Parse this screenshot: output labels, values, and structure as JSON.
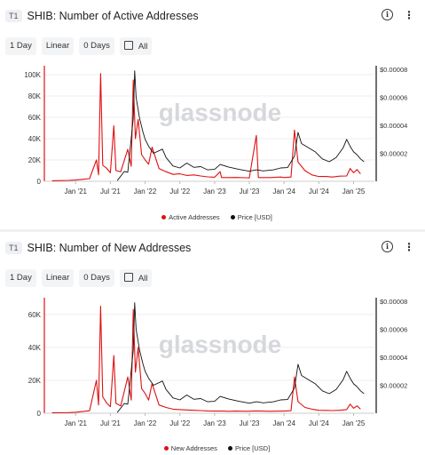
{
  "panels": [
    {
      "badge": "T1",
      "title": "SHIB: Number of Active Addresses",
      "controls": {
        "interval": "1 Day",
        "scale": "Linear",
        "ma": "0 Days",
        "range": "All"
      },
      "watermark": "glassnode",
      "legend": {
        "series1": "Active Addresses",
        "series2": "Price [USD]"
      }
    },
    {
      "badge": "T1",
      "title": "SHIB: Number of New Addresses",
      "controls": {
        "interval": "1 Day",
        "scale": "Linear",
        "ma": "0 Days",
        "range": "All"
      },
      "watermark": "glassnode",
      "legend": {
        "series1": "New Addresses",
        "series2": "Price [USD]"
      }
    }
  ],
  "chart_data": [
    {
      "type": "line",
      "title": "SHIB: Number of Active Addresses",
      "x_ticks": [
        "Jan '21",
        "Jul '21",
        "Jan '22",
        "Jul '22",
        "Jan '23",
        "Jul '23",
        "Jan '24",
        "Jul '24",
        "Jan '25"
      ],
      "y_left_ticks": [
        "0",
        "20K",
        "40K",
        "60K",
        "80K",
        "100K"
      ],
      "y_right_ticks": [
        "$0.00002",
        "$0.00004",
        "$0.00006",
        "$0.00008"
      ],
      "y_left_range": [
        0,
        105000
      ],
      "y_right_range": [
        0,
        8e-05
      ],
      "grid": true,
      "legend_position": "bottom",
      "colors": {
        "series1": "#e01010",
        "series2": "#111111"
      },
      "series": [
        {
          "name": "Active Addresses",
          "axis": "left",
          "points": [
            [
              2020.66,
              500
            ],
            [
              2020.9,
              800
            ],
            [
              2021.0,
              1200
            ],
            [
              2021.1,
              1800
            ],
            [
              2021.2,
              2500
            ],
            [
              2021.3,
              20000
            ],
            [
              2021.33,
              6000
            ],
            [
              2021.36,
              101000
            ],
            [
              2021.39,
              15000
            ],
            [
              2021.45,
              12000
            ],
            [
              2021.5,
              8000
            ],
            [
              2021.55,
              52000
            ],
            [
              2021.58,
              10000
            ],
            [
              2021.65,
              9000
            ],
            [
              2021.75,
              30000
            ],
            [
              2021.8,
              14000
            ],
            [
              2021.83,
              95000
            ],
            [
              2021.86,
              40000
            ],
            [
              2021.9,
              58000
            ],
            [
              2021.95,
              25000
            ],
            [
              2022.0,
              20000
            ],
            [
              2022.05,
              16000
            ],
            [
              2022.1,
              32000
            ],
            [
              2022.2,
              12000
            ],
            [
              2022.3,
              9000
            ],
            [
              2022.4,
              6500
            ],
            [
              2022.5,
              7000
            ],
            [
              2022.6,
              5500
            ],
            [
              2022.7,
              6000
            ],
            [
              2022.8,
              5000
            ],
            [
              2022.9,
              4200
            ],
            [
              2023.0,
              3800
            ],
            [
              2023.08,
              9000
            ],
            [
              2023.1,
              3500
            ],
            [
              2023.2,
              3500
            ],
            [
              2023.3,
              3600
            ],
            [
              2023.45,
              3300
            ],
            [
              2023.5,
              3200
            ],
            [
              2023.6,
              43000
            ],
            [
              2023.63,
              3500
            ],
            [
              2023.8,
              3500
            ],
            [
              2023.95,
              4000
            ],
            [
              2024.0,
              3500
            ],
            [
              2024.1,
              4000
            ],
            [
              2024.15,
              48000
            ],
            [
              2024.2,
              18000
            ],
            [
              2024.3,
              10000
            ],
            [
              2024.4,
              6000
            ],
            [
              2024.5,
              4500
            ],
            [
              2024.6,
              4500
            ],
            [
              2024.7,
              4000
            ],
            [
              2024.8,
              4800
            ],
            [
              2024.9,
              5000
            ],
            [
              2024.95,
              12000
            ],
            [
              2025.0,
              8000
            ],
            [
              2025.05,
              11000
            ],
            [
              2025.1,
              7000
            ]
          ]
        },
        {
          "name": "Price [USD]",
          "axis": "right",
          "points": [
            [
              2021.6,
              5e-07
            ],
            [
              2021.7,
              7e-06
            ],
            [
              2021.75,
              6.5e-06
            ],
            [
              2021.83,
              4.5e-05
            ],
            [
              2021.85,
              7.9e-05
            ],
            [
              2021.87,
              6e-05
            ],
            [
              2021.92,
              4.5e-05
            ],
            [
              2021.97,
              3.5e-05
            ],
            [
              2022.0,
              3e-05
            ],
            [
              2022.05,
              2.5e-05
            ],
            [
              2022.12,
              2e-05
            ],
            [
              2022.25,
              2.3e-05
            ],
            [
              2022.3,
              1.7e-05
            ],
            [
              2022.4,
              1.1e-05
            ],
            [
              2022.5,
              9.5e-06
            ],
            [
              2022.6,
              1.3e-05
            ],
            [
              2022.7,
              1e-05
            ],
            [
              2022.8,
              1.05e-05
            ],
            [
              2022.9,
              8.2e-06
            ],
            [
              2023.0,
              8.5e-06
            ],
            [
              2023.08,
              1.2e-05
            ],
            [
              2023.2,
              1.02e-05
            ],
            [
              2023.35,
              8.5e-06
            ],
            [
              2023.5,
              7.2e-06
            ],
            [
              2023.6,
              8.2e-06
            ],
            [
              2023.7,
              7.4e-06
            ],
            [
              2023.85,
              8.2e-06
            ],
            [
              2023.95,
              9.5e-06
            ],
            [
              2024.05,
              9.8e-06
            ],
            [
              2024.15,
              1.8e-05
            ],
            [
              2024.2,
              3.5e-05
            ],
            [
              2024.25,
              2.7e-05
            ],
            [
              2024.35,
              2.4e-05
            ],
            [
              2024.45,
              2.1e-05
            ],
            [
              2024.55,
              1.6e-05
            ],
            [
              2024.65,
              1.4e-05
            ],
            [
              2024.75,
              1.7e-05
            ],
            [
              2024.85,
              2.4e-05
            ],
            [
              2024.9,
              3e-05
            ],
            [
              2024.95,
              2.5e-05
            ],
            [
              2025.0,
              2.1e-05
            ],
            [
              2025.05,
              1.9e-05
            ],
            [
              2025.1,
              1.6e-05
            ],
            [
              2025.15,
              1.4e-05
            ]
          ]
        }
      ]
    },
    {
      "type": "line",
      "title": "SHIB: Number of New Addresses",
      "x_ticks": [
        "Jan '21",
        "Jul '21",
        "Jan '22",
        "Jul '22",
        "Jan '23",
        "Jul '23",
        "Jan '24",
        "Jul '24",
        "Jan '25"
      ],
      "y_left_ticks": [
        "0",
        "20K",
        "40K",
        "60K"
      ],
      "y_right_ticks": [
        "$0.00002",
        "$0.00004",
        "$0.00006",
        "$0.00008"
      ],
      "y_left_range": [
        0,
        68000
      ],
      "y_right_range": [
        0,
        8e-05
      ],
      "grid": true,
      "legend_position": "bottom",
      "colors": {
        "series1": "#e01010",
        "series2": "#111111"
      },
      "series": [
        {
          "name": "New Addresses",
          "axis": "left",
          "points": [
            [
              2020.66,
              300
            ],
            [
              2020.9,
              400
            ],
            [
              2021.0,
              600
            ],
            [
              2021.1,
              1000
            ],
            [
              2021.2,
              1500
            ],
            [
              2021.3,
              20000
            ],
            [
              2021.33,
              5000
            ],
            [
              2021.36,
              65000
            ],
            [
              2021.39,
              10000
            ],
            [
              2021.45,
              6000
            ],
            [
              2021.5,
              4000
            ],
            [
              2021.55,
              35000
            ],
            [
              2021.58,
              6000
            ],
            [
              2021.65,
              4500
            ],
            [
              2021.75,
              22000
            ],
            [
              2021.8,
              8000
            ],
            [
              2021.83,
              63000
            ],
            [
              2021.86,
              25000
            ],
            [
              2021.9,
              40000
            ],
            [
              2021.95,
              15000
            ],
            [
              2022.0,
              12000
            ],
            [
              2022.05,
              8000
            ],
            [
              2022.1,
              18000
            ],
            [
              2022.2,
              5000
            ],
            [
              2022.3,
              3500
            ],
            [
              2022.4,
              2500
            ],
            [
              2022.5,
              2200
            ],
            [
              2022.6,
              2000
            ],
            [
              2022.7,
              1800
            ],
            [
              2022.8,
              1600
            ],
            [
              2022.9,
              1400
            ],
            [
              2023.0,
              1300
            ],
            [
              2023.1,
              1300
            ],
            [
              2023.2,
              1200
            ],
            [
              2023.3,
              1300
            ],
            [
              2023.45,
              1200
            ],
            [
              2023.6,
              1400
            ],
            [
              2023.8,
              1200
            ],
            [
              2023.95,
              1300
            ],
            [
              2024.0,
              1300
            ],
            [
              2024.1,
              1500
            ],
            [
              2024.15,
              22000
            ],
            [
              2024.2,
              7000
            ],
            [
              2024.3,
              3500
            ],
            [
              2024.4,
              2500
            ],
            [
              2024.5,
              1800
            ],
            [
              2024.6,
              1700
            ],
            [
              2024.7,
              1600
            ],
            [
              2024.8,
              1800
            ],
            [
              2024.9,
              2200
            ],
            [
              2024.95,
              5500
            ],
            [
              2025.0,
              3000
            ],
            [
              2025.05,
              4500
            ],
            [
              2025.1,
              2500
            ]
          ]
        },
        {
          "name": "Price [USD]",
          "axis": "right",
          "points": [
            [
              2021.6,
              5e-07
            ],
            [
              2021.7,
              7e-06
            ],
            [
              2021.75,
              6.5e-06
            ],
            [
              2021.83,
              4.5e-05
            ],
            [
              2021.85,
              7.9e-05
            ],
            [
              2021.87,
              6e-05
            ],
            [
              2021.92,
              4.5e-05
            ],
            [
              2021.97,
              3.5e-05
            ],
            [
              2022.0,
              3e-05
            ],
            [
              2022.05,
              2.5e-05
            ],
            [
              2022.12,
              2e-05
            ],
            [
              2022.25,
              2.3e-05
            ],
            [
              2022.3,
              1.7e-05
            ],
            [
              2022.4,
              1.1e-05
            ],
            [
              2022.5,
              9.5e-06
            ],
            [
              2022.6,
              1.3e-05
            ],
            [
              2022.7,
              1e-05
            ],
            [
              2022.8,
              1.05e-05
            ],
            [
              2022.9,
              8.2e-06
            ],
            [
              2023.0,
              8.5e-06
            ],
            [
              2023.08,
              1.2e-05
            ],
            [
              2023.2,
              1.02e-05
            ],
            [
              2023.35,
              8.5e-06
            ],
            [
              2023.5,
              7.2e-06
            ],
            [
              2023.6,
              8.2e-06
            ],
            [
              2023.7,
              7.4e-06
            ],
            [
              2023.85,
              8.2e-06
            ],
            [
              2023.95,
              9.5e-06
            ],
            [
              2024.05,
              9.8e-06
            ],
            [
              2024.15,
              1.8e-05
            ],
            [
              2024.2,
              3.5e-05
            ],
            [
              2024.25,
              2.7e-05
            ],
            [
              2024.35,
              2.4e-05
            ],
            [
              2024.45,
              2.1e-05
            ],
            [
              2024.55,
              1.6e-05
            ],
            [
              2024.65,
              1.4e-05
            ],
            [
              2024.75,
              1.7e-05
            ],
            [
              2024.85,
              2.4e-05
            ],
            [
              2024.9,
              3e-05
            ],
            [
              2024.95,
              2.5e-05
            ],
            [
              2025.0,
              2.1e-05
            ],
            [
              2025.05,
              1.9e-05
            ],
            [
              2025.1,
              1.6e-05
            ],
            [
              2025.15,
              1.4e-05
            ]
          ]
        }
      ]
    }
  ]
}
